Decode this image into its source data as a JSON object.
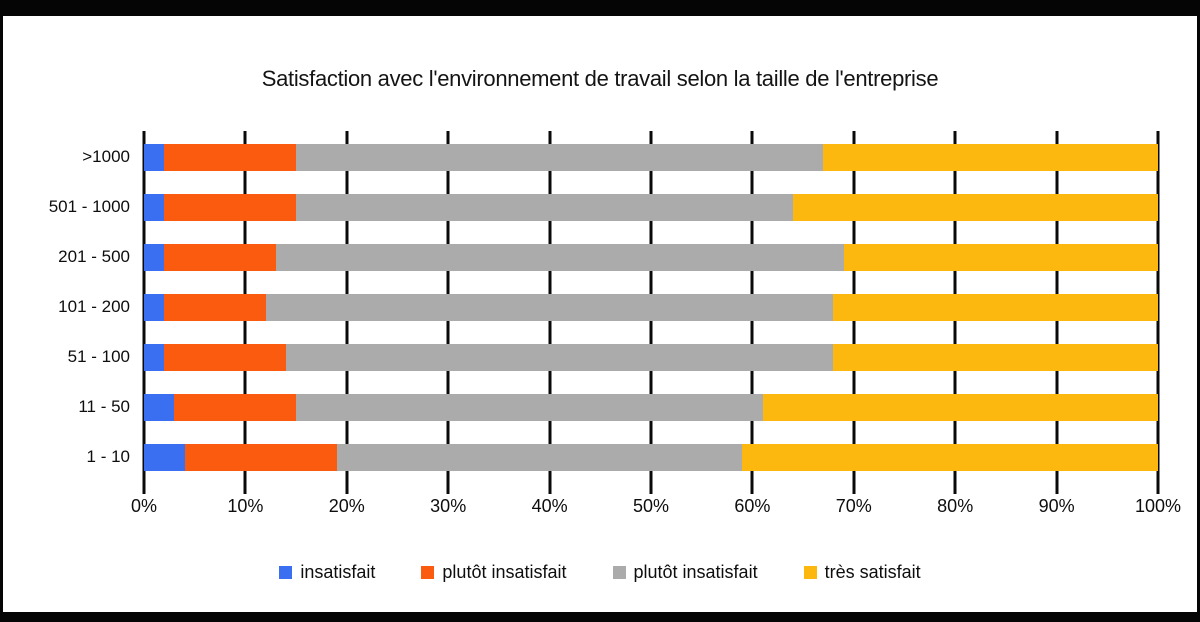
{
  "chart_data": {
    "type": "bar",
    "orientation": "horizontal",
    "stacked": true,
    "title": "Satisfaction avec l'environnement de travail selon la taille de l'entreprise",
    "categories": [
      ">1000",
      "501 - 1000",
      "201 - 500",
      "101 - 200",
      "51 - 100",
      "11 - 50",
      "1 - 10"
    ],
    "series": [
      {
        "name": "insatisfait",
        "color": "#3B6FF1",
        "values": [
          2,
          2,
          2,
          2,
          2,
          3,
          4
        ]
      },
      {
        "name": "plutôt insatisfait",
        "color": "#FA5B0F",
        "values": [
          13,
          13,
          11,
          10,
          12,
          12,
          15
        ]
      },
      {
        "name": "plutôt insatisfait",
        "color": "#ABABAB",
        "values": [
          52,
          49,
          56,
          56,
          54,
          46,
          40
        ]
      },
      {
        "name": "très satisfait",
        "color": "#FCB80F",
        "values": [
          33,
          36,
          31,
          32,
          32,
          39,
          41
        ]
      }
    ],
    "x_ticks": [
      "0%",
      "10%",
      "20%",
      "30%",
      "40%",
      "50%",
      "60%",
      "70%",
      "80%",
      "90%",
      "100%"
    ],
    "xlim": [
      0,
      100
    ],
    "grid": true,
    "grid_color": "#0a0a0a",
    "legend_position": "bottom"
  }
}
